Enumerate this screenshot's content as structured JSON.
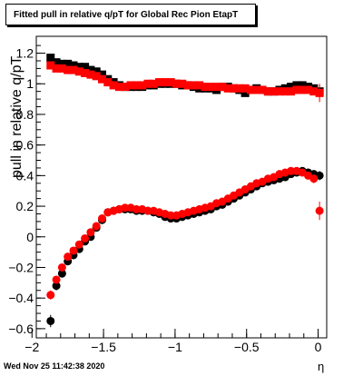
{
  "title": "Fitted pull in relative q/pT for Global Rec Pion EtapT",
  "datestamp": "Wed Nov 25 11:42:38 2020",
  "chart_data": {
    "type": "scatter",
    "xlabel": "η",
    "ylabel": "pull in relative q/pT",
    "xlim": [
      -1.97,
      0.06
    ],
    "ylim": [
      -0.66,
      1.31
    ],
    "xticks": [
      {
        "v": -2,
        "label": "−2"
      },
      {
        "v": -1.5,
        "label": "−1.5"
      },
      {
        "v": -1,
        "label": "−1"
      },
      {
        "v": -0.5,
        "label": "−0.5"
      },
      {
        "v": 0,
        "label": "0"
      }
    ],
    "yticks": [
      {
        "v": -0.6,
        "label": "−0.6"
      },
      {
        "v": -0.4,
        "label": "−0.4"
      },
      {
        "v": -0.2,
        "label": "−0.2"
      },
      {
        "v": 0,
        "label": "0"
      },
      {
        "v": 0.2,
        "label": "0.2"
      },
      {
        "v": 0.4,
        "label": "0.4"
      },
      {
        "v": 0.6,
        "label": "0.6"
      },
      {
        "v": 0.8,
        "label": "0.8"
      },
      {
        "v": 1,
        "label": "1"
      },
      {
        "v": 1.2,
        "label": "1.2"
      }
    ],
    "series": [
      {
        "marker": "square",
        "color": "#000000",
        "x": [
          -1.87,
          -1.83,
          -1.79,
          -1.75,
          -1.71,
          -1.67,
          -1.63,
          -1.59,
          -1.55,
          -1.51,
          -1.47,
          -1.43,
          -1.39,
          -1.35,
          -1.31,
          -1.27,
          -1.23,
          -1.19,
          -1.15,
          -1.11,
          -1.07,
          -1.03,
          -0.99,
          -0.95,
          -0.91,
          -0.87,
          -0.83,
          -0.79,
          -0.75,
          -0.71,
          -0.67,
          -0.63,
          -0.59,
          -0.55,
          -0.51,
          -0.47,
          -0.43,
          -0.39,
          -0.35,
          -0.31,
          -0.27,
          -0.23,
          -0.19,
          -0.15,
          -0.11,
          -0.07,
          -0.03,
          0.01
        ],
        "y": [
          1.17,
          1.14,
          1.13,
          1.13,
          1.12,
          1.11,
          1.11,
          1.09,
          1.08,
          1.06,
          1.03,
          1.01,
          0.99,
          0.98,
          0.98,
          0.98,
          0.98,
          0.99,
          0.99,
          1.0,
          1.0,
          1.0,
          1.0,
          0.99,
          0.99,
          0.98,
          0.97,
          0.97,
          0.97,
          0.96,
          0.98,
          0.98,
          0.97,
          0.96,
          0.94,
          0.96,
          0.97,
          0.96,
          0.95,
          0.95,
          0.96,
          0.97,
          0.98,
          0.99,
          0.99,
          0.98,
          0.97,
          0.95
        ],
        "err": [
          0.02,
          0.01,
          0.01,
          0.01,
          0.01,
          0.01,
          0.01,
          0.01,
          0.01,
          0.01,
          0.01,
          0.01,
          0.01,
          0.01,
          0.01,
          0.01,
          0.01,
          0.01,
          0.01,
          0.01,
          0.01,
          0.01,
          0.01,
          0.01,
          0.01,
          0.01,
          0.01,
          0.01,
          0.01,
          0.01,
          0.01,
          0.01,
          0.01,
          0.01,
          0.01,
          0.01,
          0.01,
          0.01,
          0.01,
          0.01,
          0.01,
          0.01,
          0.01,
          0.01,
          0.01,
          0.01,
          0.02,
          0.04
        ]
      },
      {
        "marker": "square",
        "color": "#ff0000",
        "x": [
          -1.87,
          -1.83,
          -1.79,
          -1.75,
          -1.71,
          -1.67,
          -1.63,
          -1.59,
          -1.55,
          -1.51,
          -1.47,
          -1.43,
          -1.39,
          -1.35,
          -1.31,
          -1.27,
          -1.23,
          -1.19,
          -1.15,
          -1.11,
          -1.07,
          -1.03,
          -0.99,
          -0.95,
          -0.91,
          -0.87,
          -0.83,
          -0.79,
          -0.75,
          -0.71,
          -0.67,
          -0.63,
          -0.59,
          -0.55,
          -0.51,
          -0.47,
          -0.43,
          -0.39,
          -0.35,
          -0.31,
          -0.27,
          -0.23,
          -0.19,
          -0.15,
          -0.11,
          -0.07,
          -0.03,
          0.01
        ],
        "y": [
          1.12,
          1.1,
          1.1,
          1.09,
          1.09,
          1.08,
          1.07,
          1.06,
          1.05,
          1.03,
          1.01,
          0.99,
          0.98,
          0.98,
          0.99,
          0.99,
          0.99,
          1.0,
          1.0,
          1.01,
          1.01,
          1.01,
          1.0,
          1.0,
          0.99,
          0.99,
          0.99,
          0.98,
          0.98,
          0.98,
          0.98,
          0.97,
          0.97,
          0.97,
          0.97,
          0.96,
          0.96,
          0.96,
          0.95,
          0.95,
          0.95,
          0.95,
          0.95,
          0.96,
          0.96,
          0.96,
          0.95,
          0.94
        ],
        "err": [
          0.02,
          0.01,
          0.01,
          0.01,
          0.01,
          0.01,
          0.01,
          0.01,
          0.01,
          0.01,
          0.01,
          0.01,
          0.01,
          0.01,
          0.01,
          0.01,
          0.01,
          0.01,
          0.01,
          0.01,
          0.01,
          0.01,
          0.01,
          0.01,
          0.01,
          0.01,
          0.01,
          0.01,
          0.01,
          0.01,
          0.01,
          0.01,
          0.01,
          0.01,
          0.01,
          0.01,
          0.01,
          0.01,
          0.01,
          0.01,
          0.01,
          0.01,
          0.01,
          0.01,
          0.01,
          0.01,
          0.02,
          0.06
        ]
      },
      {
        "marker": "circle",
        "color": "#000000",
        "x": [
          -1.87,
          -1.83,
          -1.79,
          -1.75,
          -1.71,
          -1.67,
          -1.63,
          -1.59,
          -1.55,
          -1.51,
          -1.47,
          -1.43,
          -1.39,
          -1.35,
          -1.31,
          -1.27,
          -1.23,
          -1.19,
          -1.15,
          -1.11,
          -1.07,
          -1.03,
          -0.99,
          -0.95,
          -0.91,
          -0.87,
          -0.83,
          -0.79,
          -0.75,
          -0.71,
          -0.67,
          -0.63,
          -0.59,
          -0.55,
          -0.51,
          -0.47,
          -0.43,
          -0.39,
          -0.35,
          -0.31,
          -0.27,
          -0.23,
          -0.19,
          -0.15,
          -0.11,
          -0.07,
          -0.03,
          0.01
        ],
        "y": [
          -0.55,
          -0.32,
          -0.24,
          -0.16,
          -0.12,
          -0.08,
          -0.03,
          0.0,
          0.06,
          0.11,
          0.16,
          0.17,
          0.18,
          0.18,
          0.18,
          0.17,
          0.17,
          0.17,
          0.16,
          0.15,
          0.13,
          0.12,
          0.12,
          0.13,
          0.14,
          0.15,
          0.16,
          0.17,
          0.18,
          0.2,
          0.21,
          0.23,
          0.25,
          0.27,
          0.29,
          0.31,
          0.33,
          0.35,
          0.36,
          0.37,
          0.38,
          0.39,
          0.41,
          0.42,
          0.43,
          0.42,
          0.41,
          0.4
        ],
        "err": [
          0.04,
          0.03,
          0.02,
          0.02,
          0.02,
          0.02,
          0.02,
          0.01,
          0.01,
          0.01,
          0.01,
          0.01,
          0.01,
          0.01,
          0.01,
          0.01,
          0.01,
          0.01,
          0.01,
          0.01,
          0.01,
          0.01,
          0.01,
          0.01,
          0.01,
          0.01,
          0.01,
          0.01,
          0.01,
          0.01,
          0.01,
          0.01,
          0.01,
          0.01,
          0.01,
          0.01,
          0.01,
          0.01,
          0.01,
          0.01,
          0.01,
          0.01,
          0.01,
          0.01,
          0.01,
          0.01,
          0.02,
          0.03
        ]
      },
      {
        "marker": "circle",
        "color": "#ff0000",
        "x": [
          -1.87,
          -1.83,
          -1.79,
          -1.75,
          -1.71,
          -1.67,
          -1.63,
          -1.59,
          -1.55,
          -1.51,
          -1.47,
          -1.43,
          -1.39,
          -1.35,
          -1.31,
          -1.27,
          -1.23,
          -1.19,
          -1.15,
          -1.11,
          -1.07,
          -1.03,
          -0.99,
          -0.95,
          -0.91,
          -0.87,
          -0.83,
          -0.79,
          -0.75,
          -0.71,
          -0.67,
          -0.63,
          -0.59,
          -0.55,
          -0.51,
          -0.47,
          -0.43,
          -0.39,
          -0.35,
          -0.31,
          -0.27,
          -0.23,
          -0.19,
          -0.15,
          -0.11,
          -0.07,
          -0.03,
          0.01
        ],
        "y": [
          -0.38,
          -0.28,
          -0.2,
          -0.13,
          -0.09,
          -0.05,
          -0.01,
          0.03,
          0.07,
          0.12,
          0.16,
          0.17,
          0.18,
          0.19,
          0.19,
          0.18,
          0.18,
          0.17,
          0.17,
          0.16,
          0.15,
          0.14,
          0.14,
          0.15,
          0.16,
          0.17,
          0.18,
          0.19,
          0.2,
          0.22,
          0.23,
          0.25,
          0.27,
          0.29,
          0.31,
          0.33,
          0.35,
          0.36,
          0.38,
          0.39,
          0.41,
          0.42,
          0.43,
          0.43,
          0.42,
          0.4,
          0.38,
          0.17
        ],
        "err": [
          0.03,
          0.02,
          0.02,
          0.02,
          0.02,
          0.02,
          0.01,
          0.01,
          0.01,
          0.01,
          0.01,
          0.01,
          0.01,
          0.01,
          0.01,
          0.01,
          0.01,
          0.01,
          0.01,
          0.01,
          0.01,
          0.01,
          0.01,
          0.01,
          0.01,
          0.01,
          0.01,
          0.01,
          0.01,
          0.01,
          0.01,
          0.01,
          0.01,
          0.01,
          0.01,
          0.01,
          0.01,
          0.01,
          0.01,
          0.01,
          0.01,
          0.01,
          0.01,
          0.01,
          0.01,
          0.02,
          0.03,
          0.06
        ]
      }
    ]
  }
}
